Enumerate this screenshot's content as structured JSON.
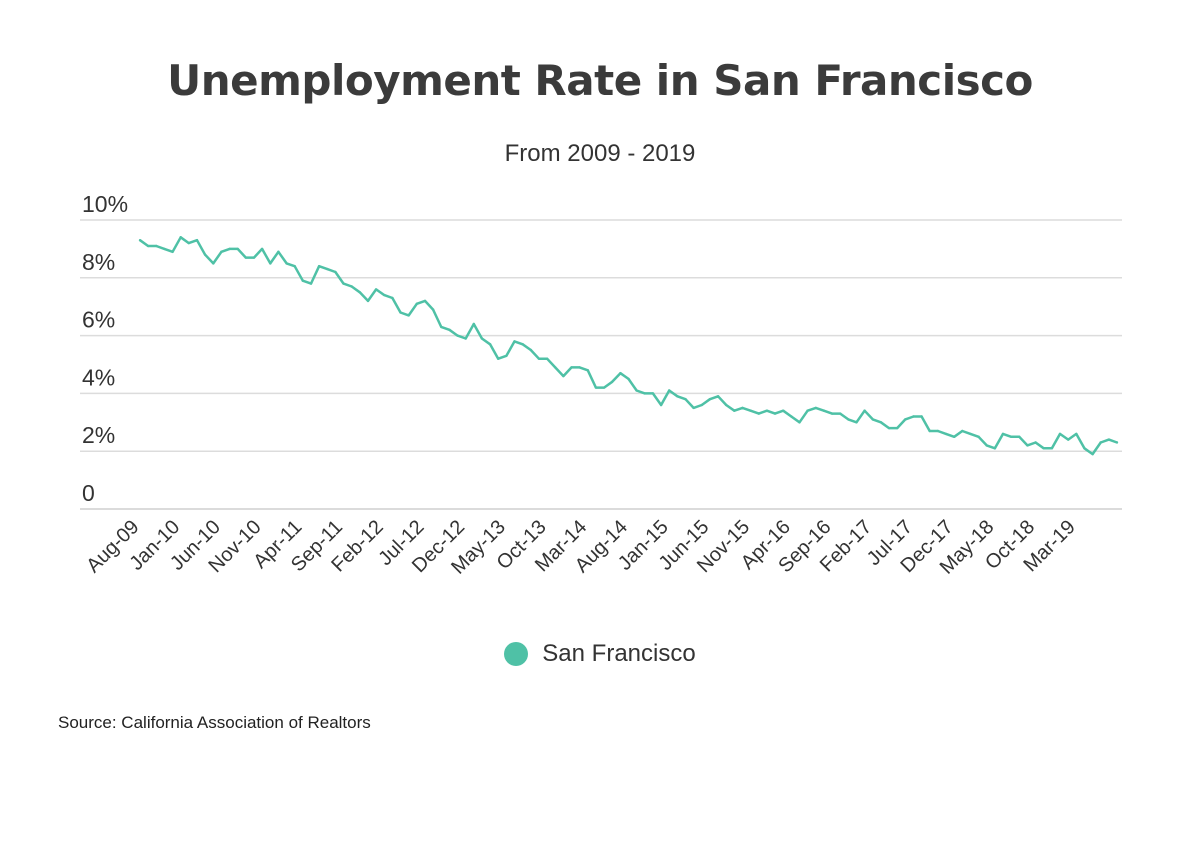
{
  "chart_data": {
    "type": "line",
    "title": "Unemployment Rate in San Francisco",
    "subtitle": "From 2009 - 2019",
    "source": "Source:  California Association of Realtors",
    "xlabel": "",
    "ylabel": "",
    "ylim": [
      0,
      10
    ],
    "yticks": [
      {
        "value": 0,
        "label": "0"
      },
      {
        "value": 2,
        "label": "2%"
      },
      {
        "value": 4,
        "label": "4%"
      },
      {
        "value": 6,
        "label": "6%"
      },
      {
        "value": 8,
        "label": "8%"
      },
      {
        "value": 10,
        "label": "10%"
      }
    ],
    "grid": true,
    "legend_position": "bottom",
    "x_labels": [
      {
        "index": 0,
        "label": "Aug-09"
      },
      {
        "index": 5,
        "label": "Jan-10"
      },
      {
        "index": 10,
        "label": "Jun-10"
      },
      {
        "index": 15,
        "label": "Nov-10"
      },
      {
        "index": 20,
        "label": "Apr-11"
      },
      {
        "index": 25,
        "label": "Sep-11"
      },
      {
        "index": 30,
        "label": "Feb-12"
      },
      {
        "index": 35,
        "label": "Jul-12"
      },
      {
        "index": 40,
        "label": "Dec-12"
      },
      {
        "index": 45,
        "label": "May-13"
      },
      {
        "index": 50,
        "label": "Oct-13"
      },
      {
        "index": 55,
        "label": "Mar-14"
      },
      {
        "index": 60,
        "label": "Aug-14"
      },
      {
        "index": 65,
        "label": "Jan-15"
      },
      {
        "index": 70,
        "label": "Jun-15"
      },
      {
        "index": 75,
        "label": "Nov-15"
      },
      {
        "index": 80,
        "label": "Apr-16"
      },
      {
        "index": 85,
        "label": "Sep-16"
      },
      {
        "index": 90,
        "label": "Feb-17"
      },
      {
        "index": 95,
        "label": "Jul-17"
      },
      {
        "index": 100,
        "label": "Dec-17"
      },
      {
        "index": 105,
        "label": "May-18"
      },
      {
        "index": 110,
        "label": "Oct-18"
      },
      {
        "index": 115,
        "label": "Mar-19"
      }
    ],
    "series": [
      {
        "name": "San Francisco",
        "color": "#4fc1a6",
        "values": [
          9.3,
          9.1,
          9.1,
          9.0,
          8.9,
          9.4,
          9.2,
          9.3,
          8.8,
          8.5,
          8.9,
          9.0,
          9.0,
          8.7,
          8.7,
          9.0,
          8.5,
          8.9,
          8.5,
          8.4,
          7.9,
          7.8,
          8.4,
          8.3,
          8.2,
          7.8,
          7.7,
          7.5,
          7.2,
          7.6,
          7.4,
          7.3,
          6.8,
          6.7,
          7.1,
          7.2,
          6.9,
          6.3,
          6.2,
          6.0,
          5.9,
          6.4,
          5.9,
          5.7,
          5.2,
          5.3,
          5.8,
          5.7,
          5.5,
          5.2,
          5.2,
          4.9,
          4.6,
          4.9,
          4.9,
          4.8,
          4.2,
          4.2,
          4.4,
          4.7,
          4.5,
          4.1,
          4.0,
          4.0,
          3.6,
          4.1,
          3.9,
          3.8,
          3.5,
          3.6,
          3.8,
          3.9,
          3.6,
          3.4,
          3.5,
          3.4,
          3.3,
          3.4,
          3.3,
          3.4,
          3.2,
          3.0,
          3.4,
          3.5,
          3.4,
          3.3,
          3.3,
          3.1,
          3.0,
          3.4,
          3.1,
          3.0,
          2.8,
          2.8,
          3.1,
          3.2,
          3.2,
          2.7,
          2.7,
          2.6,
          2.5,
          2.7,
          2.6,
          2.5,
          2.2,
          2.1,
          2.6,
          2.5,
          2.5,
          2.2,
          2.3,
          2.1,
          2.1,
          2.6,
          2.4,
          2.6,
          2.1,
          1.9,
          2.3,
          2.4,
          2.3
        ]
      }
    ]
  }
}
